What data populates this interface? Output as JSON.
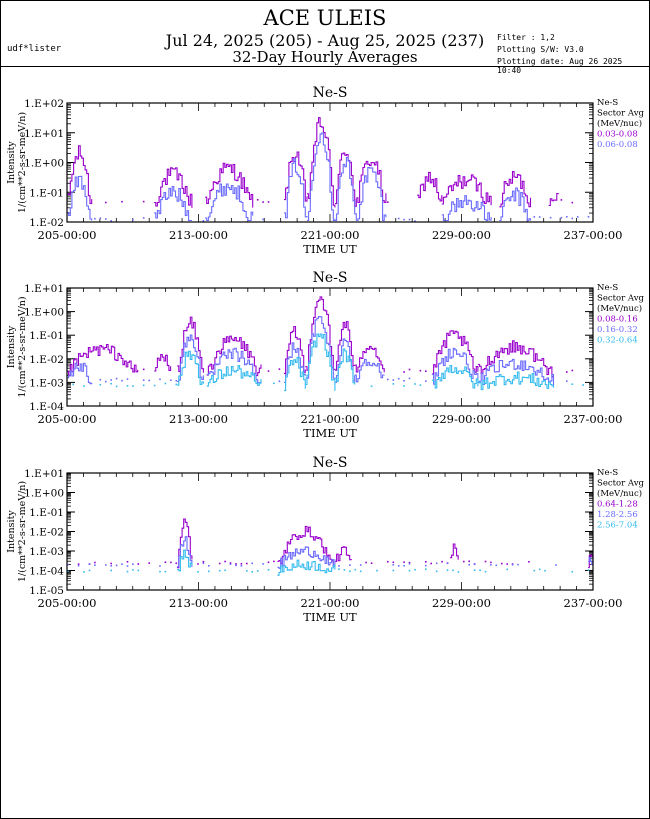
{
  "header": {
    "title": "ACE ULEIS",
    "date_range": "Jul 24, 2025 (205) - Aug 25, 2025 (237)",
    "subtitle": "32-Day Hourly Averages",
    "user": "udf*lister",
    "filter": "Filter : 1,2",
    "software": "Plotting S/W: V3.0",
    "plot_date": "Plotting date: Aug 26 2025 10:40"
  },
  "chart_data": [
    {
      "type": "line",
      "title": "Ne-S",
      "xlabel": "TIME UT",
      "ylabel": [
        "Intensity",
        "1/(cm**2-s-sr-meV/n)"
      ],
      "x_ticks": [
        "205-00:00",
        "213-00:00",
        "221-00:00",
        "229-00:00",
        "237-00:00"
      ],
      "y_ticks": [
        "1.E-02",
        "1.E-01",
        "1.E+00",
        "1.E+01",
        "1.E+02"
      ],
      "ylim_log10": [
        -2,
        2
      ],
      "xlim_doy": [
        205,
        237
      ],
      "y_scale": "log",
      "legend_title": [
        "Ne-S",
        "Sector Avg",
        "(MeV/nuc)"
      ],
      "legend_position": "right",
      "series": [
        {
          "name": "0.03-0.08",
          "color": "#9900cc",
          "floor_log10": -1.3,
          "events": [
            [
              205,
              206.5,
              0.3
            ],
            [
              210.3,
              212.6,
              -0.4
            ],
            [
              213.4,
              216.3,
              -0.2
            ],
            [
              218.2,
              219.6,
              0.3
            ],
            [
              219.6,
              221.3,
              1.3
            ],
            [
              221.3,
              222.6,
              0.4
            ],
            [
              222.6,
              224.4,
              0.1
            ],
            [
              226.3,
              227.8,
              -0.5
            ],
            [
              227.8,
              230.8,
              -0.6
            ],
            [
              231.3,
              233.2,
              -0.5
            ],
            [
              234.3,
              234.9,
              -1.0
            ]
          ]
        },
        {
          "name": "0.06-0.08",
          "color": "#6b6bff",
          "floor_log10": -1.9,
          "events": [
            [
              205,
              206.5,
              -0.6
            ],
            [
              210.3,
              212.6,
              -1.0
            ],
            [
              213.4,
              216.3,
              -0.8
            ],
            [
              218.2,
              219.6,
              -0.1
            ],
            [
              219.6,
              221.3,
              1.0
            ],
            [
              221.3,
              222.6,
              0.0
            ],
            [
              222.6,
              224.4,
              -0.3
            ],
            [
              227.8,
              230.8,
              -1.3
            ],
            [
              231.3,
              233.2,
              -1.1
            ]
          ]
        }
      ]
    },
    {
      "type": "line",
      "title": "Ne-S",
      "xlabel": "TIME UT",
      "ylabel": [
        "Intensity",
        "1/(cm**2-s-sr-meV/n)"
      ],
      "x_ticks": [
        "205-00:00",
        "213-00:00",
        "221-00:00",
        "229-00:00",
        "237-00:00"
      ],
      "y_ticks": [
        "1.E-04",
        "1.E-03",
        "1.E-02",
        "1.E-01",
        "1.E+00",
        "1.E+01"
      ],
      "ylim_log10": [
        -4,
        1
      ],
      "xlim_doy": [
        205,
        237
      ],
      "y_scale": "log",
      "legend_title": [
        "Ne-S",
        "Sector Avg",
        "(MeV/nuc)"
      ],
      "legend_position": "right",
      "series": [
        {
          "name": "0.08-0.16",
          "color": "#9900cc",
          "floor_log10": -2.5,
          "events": [
            [
              205,
              209.3,
              -1.6
            ],
            [
              210.3,
              211.3,
              -1.9
            ],
            [
              211.7,
              213.3,
              -0.5
            ],
            [
              213.5,
              216.8,
              -1.2
            ],
            [
              218.2,
              219.5,
              -0.9
            ],
            [
              219.5,
              221.3,
              0.6
            ],
            [
              221.3,
              222.5,
              -0.5
            ],
            [
              222.5,
              224.3,
              -1.4
            ],
            [
              227.2,
              230.0,
              -1.0
            ],
            [
              230.0,
              234.6,
              -1.5
            ]
          ]
        },
        {
          "name": "0.16-0.32",
          "color": "#6b6bff",
          "floor_log10": -2.9,
          "events": [
            [
              205,
              206.5,
              -2.3
            ],
            [
              211.7,
              213.3,
              -1.1
            ],
            [
              213.5,
              216.8,
              -1.8
            ],
            [
              218.2,
              219.5,
              -1.5
            ],
            [
              219.5,
              221.3,
              -0.3
            ],
            [
              221.3,
              222.5,
              -1.2
            ],
            [
              222.5,
              224.3,
              -2.0
            ],
            [
              227.2,
              230.0,
              -1.7
            ],
            [
              230.0,
              234.6,
              -2.2
            ]
          ]
        },
        {
          "name": "0.32-0.64",
          "color": "#33bbee",
          "floor_log10": -3.1,
          "events": [
            [
              211.7,
              213.3,
              -1.8
            ],
            [
              213.5,
              216.8,
              -2.5
            ],
            [
              218.2,
              219.5,
              -2.1
            ],
            [
              219.5,
              221.3,
              -1.0
            ],
            [
              221.3,
              222.5,
              -1.8
            ],
            [
              227.2,
              230.0,
              -2.4
            ],
            [
              230.0,
              234.6,
              -2.8
            ]
          ]
        }
      ]
    },
    {
      "type": "line",
      "title": "Ne-S",
      "xlabel": "TIME UT",
      "ylabel": [
        "Intensity",
        "1/(cm**2-s-sr-meV/n)"
      ],
      "x_ticks": [
        "205-00:00",
        "213-00:00",
        "221-00:00",
        "229-00:00",
        "237-00:00"
      ],
      "y_ticks": [
        "1.E-05",
        "1.E-04",
        "1.E-03",
        "1.E-02",
        "1.E-01",
        "1.E+00",
        "1.E+01"
      ],
      "ylim_log10": [
        -5,
        1
      ],
      "xlim_doy": [
        205,
        237
      ],
      "y_scale": "log",
      "legend_title": [
        "Ne-S",
        "Sector Avg",
        "(MeV/nuc)"
      ],
      "legend_position": "right",
      "series": [
        {
          "name": "0.64-1.28",
          "color": "#9900cc",
          "floor_log10": -3.6,
          "events": [
            [
              211.7,
              212.6,
              -1.5
            ],
            [
              217.8,
              221.3,
              -2.0
            ],
            [
              221.3,
              222.3,
              -3.0
            ],
            [
              228.3,
              228.8,
              -2.8
            ],
            [
              236.7,
              237,
              -3.0
            ]
          ]
        },
        {
          "name": "1.28-2.56",
          "color": "#6b6bff",
          "floor_log10": -3.7,
          "events": [
            [
              211.7,
              212.6,
              -2.5
            ],
            [
              217.8,
              221.3,
              -3.0
            ],
            [
              236.7,
              237,
              -3.5
            ]
          ]
        },
        {
          "name": "2.56-7.04",
          "color": "#33bbee",
          "floor_log10": -4.0,
          "events": [
            [
              211.7,
              212.6,
              -3.2
            ],
            [
              217.8,
              221.3,
              -3.7
            ]
          ]
        }
      ]
    }
  ]
}
